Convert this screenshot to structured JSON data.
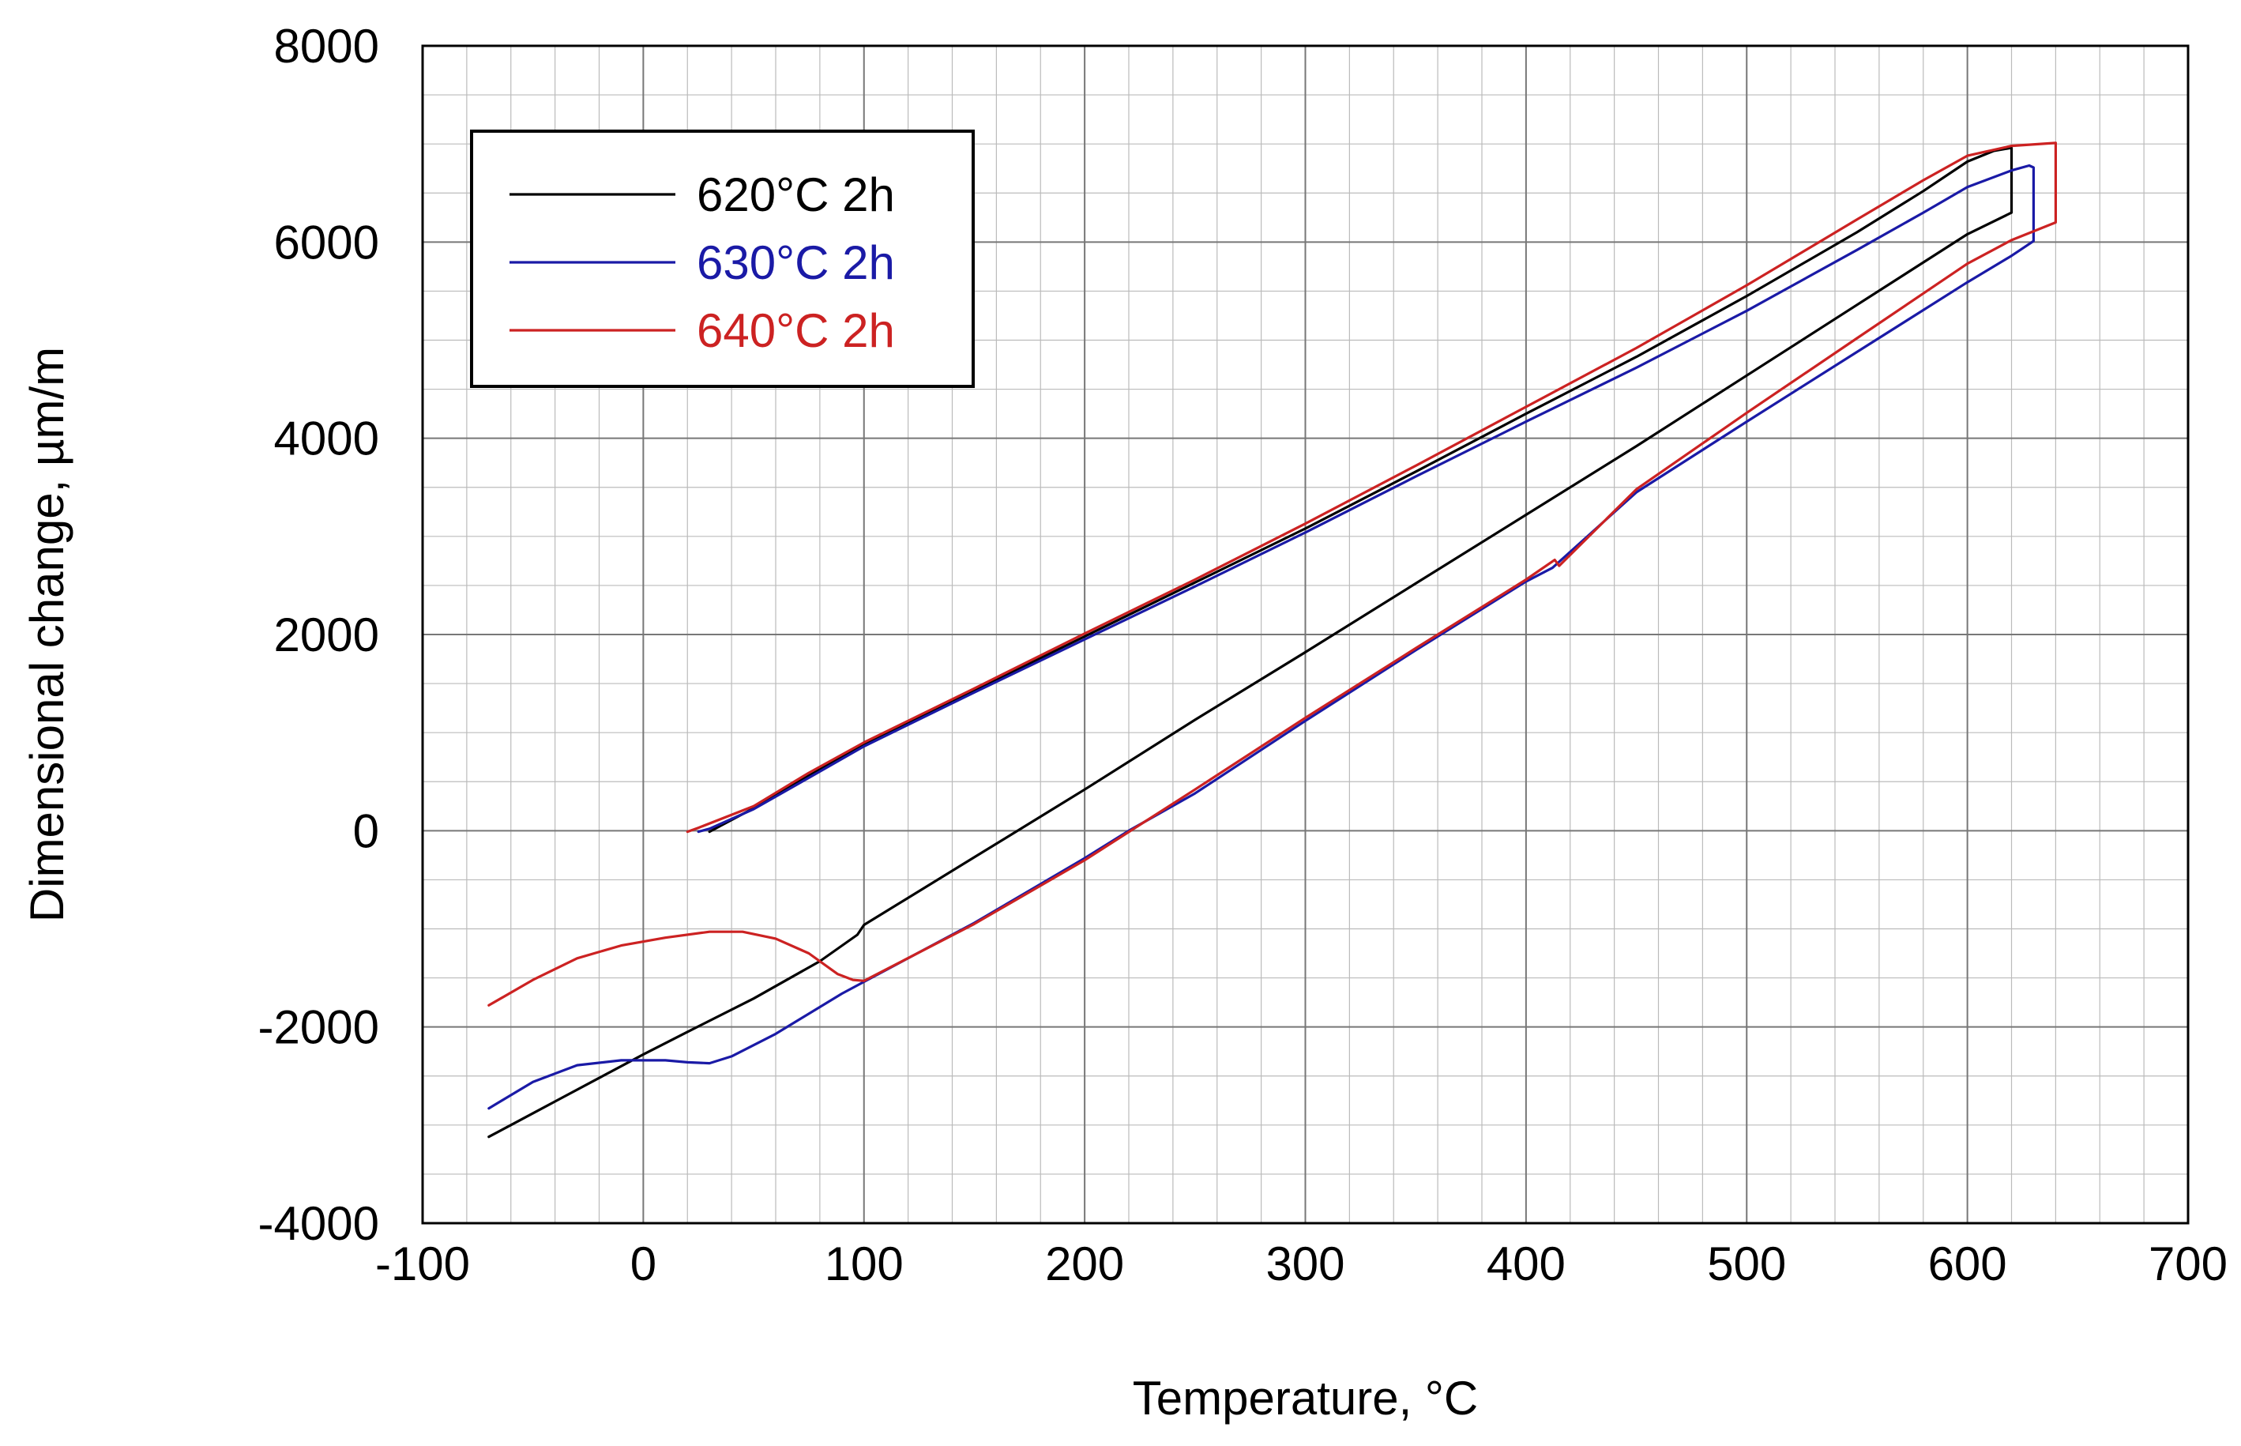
{
  "chart_data": {
    "type": "line",
    "title": "",
    "xlabel": "Temperature, °C",
    "ylabel": "Dimensional change, µm/m",
    "xlim": [
      -100,
      700
    ],
    "ylim": [
      -4000,
      8000
    ],
    "xticks": [
      -100,
      0,
      100,
      200,
      300,
      400,
      500,
      600,
      700
    ],
    "xtick_labels": [
      "-100",
      "0",
      "100",
      "200",
      "300",
      "400",
      "500",
      "600",
      "700"
    ],
    "yticks": [
      -4000,
      -2000,
      0,
      2000,
      4000,
      6000,
      8000
    ],
    "ytick_labels": [
      "-4000",
      "-2000",
      "0",
      "2000",
      "4000",
      "6000",
      "8000"
    ],
    "x_minor_step": 20,
    "y_minor_step": 500,
    "grid": true,
    "legend_position": "top-left",
    "series": [
      {
        "name": "620°C 2h",
        "color": "#000000",
        "x": [
          30,
          35,
          50,
          75,
          100,
          150,
          200,
          250,
          300,
          350,
          400,
          450,
          500,
          550,
          580,
          600,
          612,
          620,
          620,
          600,
          550,
          500,
          450,
          400,
          350,
          300,
          250,
          200,
          150,
          100,
          97,
          80,
          50,
          20,
          0,
          -20,
          -40,
          -60,
          -70
        ],
        "y": [
          -10,
          50,
          230,
          560,
          880,
          1430,
          1980,
          2530,
          3080,
          3660,
          4250,
          4830,
          5450,
          6100,
          6520,
          6820,
          6930,
          6960,
          6300,
          6080,
          5360,
          4640,
          3920,
          3220,
          2520,
          1820,
          1130,
          420,
          -270,
          -960,
          -1060,
          -1330,
          -1710,
          -2050,
          -2280,
          -2520,
          -2760,
          -3000,
          -3120
        ]
      },
      {
        "name": "630°C 2h",
        "color": "#1a1aa6",
        "x": [
          25,
          30,
          50,
          75,
          100,
          150,
          200,
          250,
          300,
          350,
          400,
          450,
          500,
          550,
          580,
          600,
          620,
          628,
          630,
          630,
          620,
          600,
          550,
          500,
          450,
          412,
          400,
          350,
          300,
          250,
          220,
          200,
          150,
          100,
          90,
          60,
          40,
          30,
          20,
          10,
          0,
          -10,
          -30,
          -50,
          -70
        ],
        "y": [
          -10,
          20,
          220,
          540,
          860,
          1410,
          1950,
          2490,
          3040,
          3610,
          4170,
          4720,
          5300,
          5920,
          6300,
          6560,
          6730,
          6780,
          6760,
          6010,
          5860,
          5590,
          4880,
          4170,
          3450,
          2680,
          2540,
          1840,
          1120,
          380,
          0,
          -280,
          -940,
          -1540,
          -1660,
          -2070,
          -2300,
          -2370,
          -2360,
          -2340,
          -2340,
          -2340,
          -2390,
          -2560,
          -2830
        ]
      },
      {
        "name": "640°C 2h",
        "color": "#cc2222",
        "x": [
          20,
          25,
          50,
          75,
          100,
          150,
          200,
          250,
          300,
          350,
          400,
          450,
          500,
          550,
          580,
          600,
          620,
          640,
          640,
          620,
          600,
          550,
          500,
          450,
          415,
          413,
          400,
          350,
          300,
          250,
          200,
          150,
          100,
          95,
          88,
          75,
          60,
          45,
          30,
          10,
          -10,
          -30,
          -50,
          -70
        ],
        "y": [
          -10,
          30,
          250,
          590,
          900,
          1450,
          2010,
          2560,
          3130,
          3720,
          4320,
          4920,
          5560,
          6230,
          6630,
          6880,
          6980,
          7010,
          6200,
          6020,
          5780,
          5020,
          4260,
          3480,
          2700,
          2760,
          2560,
          1860,
          1150,
          420,
          -300,
          -950,
          -1530,
          -1520,
          -1460,
          -1250,
          -1100,
          -1030,
          -1030,
          -1090,
          -1170,
          -1300,
          -1520,
          -1780
        ]
      }
    ]
  }
}
